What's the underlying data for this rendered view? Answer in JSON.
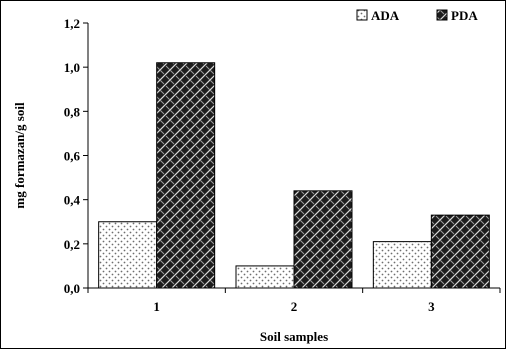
{
  "chart_data": {
    "type": "bar",
    "categories": [
      "1",
      "2",
      "3"
    ],
    "series": [
      {
        "name": "ADA",
        "values": [
          0.3,
          0.1,
          0.21
        ],
        "pattern": "dotted",
        "fill": "#ffffff",
        "mark": "#6e6e6e"
      },
      {
        "name": "PDA",
        "values": [
          1.02,
          0.44,
          0.33
        ],
        "pattern": "crosshatch",
        "fill": "#1c1c1c",
        "mark": "#d8d8d8"
      }
    ],
    "xlabel": "Soil samples",
    "ylabel": "mg formazan/g soil",
    "ylim": [
      0,
      1.2
    ],
    "yticks": [
      "0,0",
      "0,2",
      "0,4",
      "0,6",
      "0,8",
      "1,0",
      "1,2"
    ],
    "grid": false,
    "legend": "top-right"
  }
}
